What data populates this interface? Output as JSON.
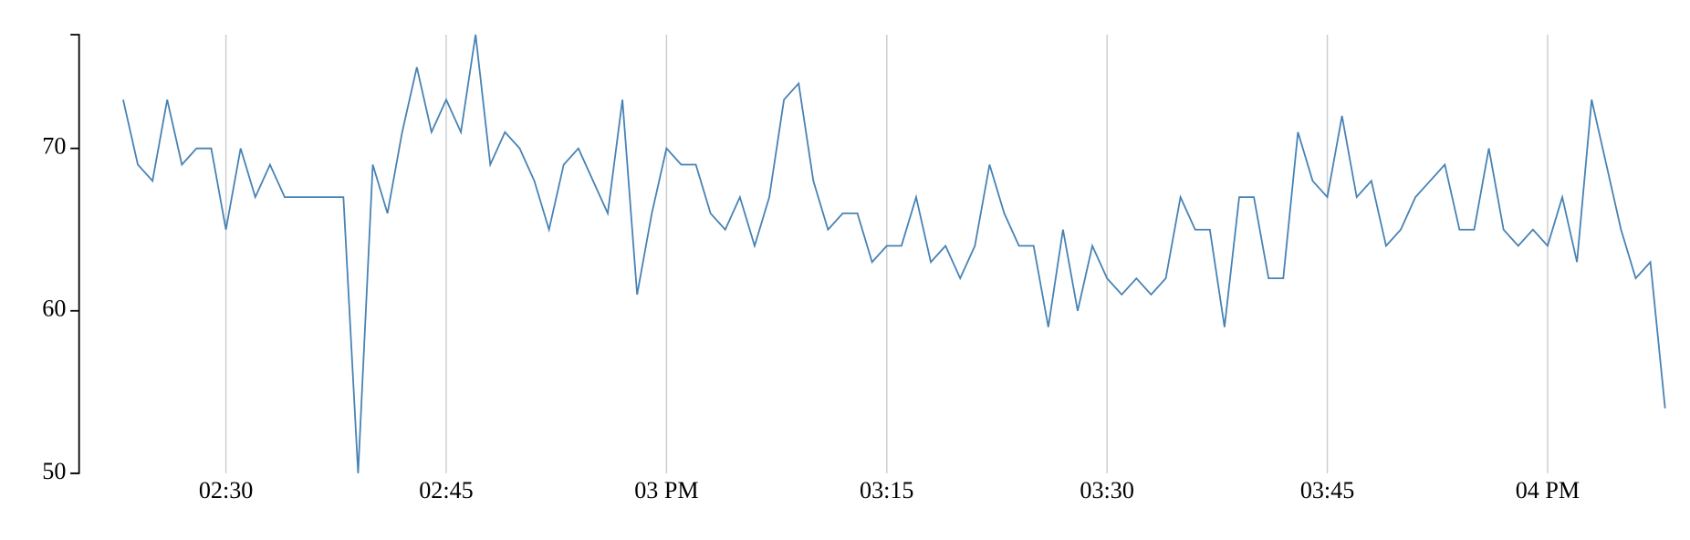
{
  "chart_data": {
    "type": "line",
    "color": "#4682b4",
    "grid": true,
    "x": [
      "14:23",
      "14:24",
      "14:25",
      "14:26",
      "14:27",
      "14:28",
      "14:29",
      "14:30",
      "14:31",
      "14:32",
      "14:33",
      "14:34",
      "14:35",
      "14:36",
      "14:37",
      "14:38",
      "14:39",
      "14:40",
      "14:41",
      "14:42",
      "14:43",
      "14:44",
      "14:45",
      "14:46",
      "14:47",
      "14:48",
      "14:49",
      "14:50",
      "14:51",
      "14:52",
      "14:53",
      "14:54",
      "14:55",
      "14:56",
      "14:57",
      "14:58",
      "14:59",
      "15:00",
      "15:01",
      "15:02",
      "15:03",
      "15:04",
      "15:05",
      "15:06",
      "15:07",
      "15:08",
      "15:09",
      "15:10",
      "15:11",
      "15:12",
      "15:13",
      "15:14",
      "15:15",
      "15:16",
      "15:17",
      "15:18",
      "15:19",
      "15:20",
      "15:21",
      "15:22",
      "15:23",
      "15:24",
      "15:25",
      "15:26",
      "15:27",
      "15:28",
      "15:29",
      "15:30",
      "15:31",
      "15:32",
      "15:33",
      "15:34",
      "15:35",
      "15:36",
      "15:37",
      "15:38",
      "15:39",
      "15:40",
      "15:41",
      "15:42",
      "15:43",
      "15:44",
      "15:45",
      "15:46",
      "15:47",
      "15:48",
      "15:49",
      "15:50",
      "15:51",
      "15:52",
      "15:53",
      "15:54",
      "15:55",
      "15:56",
      "15:57",
      "15:58",
      "15:59",
      "16:00",
      "16:01",
      "16:02",
      "16:03",
      "16:04",
      "16:05",
      "16:06",
      "16:07",
      "16:08"
    ],
    "values": [
      73,
      69,
      68,
      73,
      69,
      70,
      70,
      65,
      70,
      67,
      69,
      67,
      67,
      67,
      67,
      67,
      50,
      69,
      66,
      71,
      75,
      71,
      73,
      71,
      77,
      69,
      71,
      70,
      68,
      65,
      69,
      70,
      68,
      66,
      73,
      61,
      66,
      70,
      69,
      69,
      66,
      65,
      67,
      64,
      67,
      73,
      74,
      68,
      65,
      66,
      66,
      63,
      64,
      64,
      67,
      63,
      64,
      62,
      64,
      69,
      66,
      64,
      64,
      59,
      65,
      60,
      64,
      62,
      61,
      62,
      61,
      62,
      67,
      65,
      65,
      59,
      67,
      67,
      62,
      62,
      71,
      68,
      67,
      72,
      67,
      68,
      64,
      65,
      67,
      68,
      69,
      65,
      65,
      70,
      65,
      64,
      65,
      64,
      67,
      63,
      73,
      69,
      65,
      62,
      63,
      54
    ],
    "xlim": [
      "14:20",
      "16:08"
    ],
    "xticks": [
      {
        "value": "14:30",
        "label": "02:30"
      },
      {
        "value": "14:45",
        "label": "02:45"
      },
      {
        "value": "15:00",
        "label": "03 PM"
      },
      {
        "value": "15:15",
        "label": "03:15"
      },
      {
        "value": "15:30",
        "label": "03:30"
      },
      {
        "value": "15:45",
        "label": "03:45"
      },
      {
        "value": "16:00",
        "label": "04 PM"
      }
    ],
    "ylim": [
      50,
      77
    ],
    "yticks": [
      50,
      60,
      70
    ]
  }
}
